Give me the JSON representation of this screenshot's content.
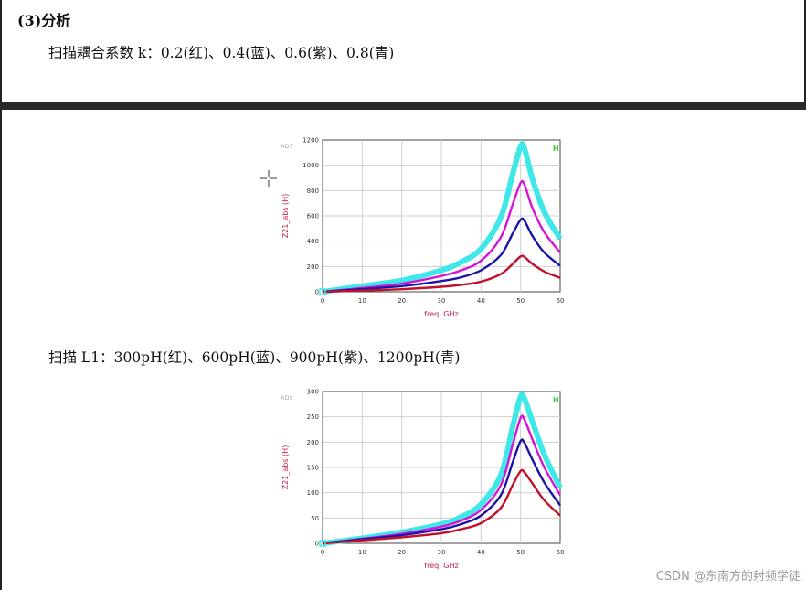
{
  "heading": "(3)分析",
  "sweep_k": "扫描耦合系数 k：0.2(红)、0.4(蓝)、0.6(紫)、0.8(青)",
  "sweep_l1": "扫描 L1：300pH(红)、600pH(蓝)、900pH(紫)、1200pH(青)",
  "watermark": "CSDN @东南方的射频学徒",
  "colors": {
    "red": "#c0102a",
    "blue": "#1c14a8",
    "purple": "#d414d4",
    "cyan": "#3ee8e8",
    "axis_label": "#c4204a"
  },
  "chart_data": [
    {
      "type": "line",
      "badge": "ADS",
      "marker": "H",
      "xlabel": "freq, GHz",
      "ylabel": "Z21_abs (H)",
      "xlim": [
        0,
        60
      ],
      "ylim": [
        0,
        1200
      ],
      "xticks": [
        "0",
        "10",
        "20",
        "30",
        "40",
        "50",
        "60"
      ],
      "yticks": [
        "0",
        "200",
        "400",
        "600",
        "800",
        "1000",
        "1200"
      ],
      "grid": true,
      "x": [
        0,
        10,
        20,
        30,
        35,
        40,
        45,
        48,
        50,
        51,
        53,
        56,
        60
      ],
      "series": [
        {
          "color": "red",
          "values": [
            0,
            10,
            20,
            40,
            55,
            80,
            140,
            220,
            280,
            275,
            220,
            160,
            110
          ]
        },
        {
          "color": "blue",
          "values": [
            0,
            22,
            45,
            85,
            115,
            170,
            290,
            460,
            570,
            560,
            440,
            310,
            205
          ]
        },
        {
          "color": "purple",
          "values": [
            0,
            30,
            65,
            125,
            170,
            245,
            430,
            690,
            860,
            845,
            660,
            470,
            310
          ]
        },
        {
          "color": "cyan",
          "values": [
            0,
            45,
            90,
            170,
            235,
            340,
            590,
            930,
            1150,
            1130,
            890,
            630,
            420
          ]
        }
      ]
    },
    {
      "type": "line",
      "badge": "ADS",
      "marker": "H",
      "xlabel": "freq, GHz",
      "ylabel": "Z21_abs (H)",
      "xlim": [
        0,
        60
      ],
      "ylim": [
        0,
        300
      ],
      "xticks": [
        "0",
        "10",
        "20",
        "30",
        "40",
        "50",
        "60"
      ],
      "yticks": [
        "0",
        "50",
        "100",
        "150",
        "200",
        "250",
        "300"
      ],
      "grid": true,
      "x": [
        0,
        10,
        20,
        30,
        35,
        40,
        45,
        48,
        50,
        51,
        53,
        56,
        60
      ],
      "series": [
        {
          "color": "red",
          "values": [
            0,
            6,
            12,
            20,
            28,
            40,
            70,
            115,
            143,
            140,
            118,
            85,
            55
          ]
        },
        {
          "color": "blue",
          "values": [
            0,
            8,
            16,
            28,
            38,
            55,
            95,
            160,
            202,
            198,
            165,
            120,
            75
          ]
        },
        {
          "color": "purple",
          "values": [
            0,
            9,
            19,
            33,
            45,
            66,
            115,
            195,
            248,
            244,
            205,
            150,
            95
          ]
        },
        {
          "color": "cyan",
          "values": [
            0,
            10,
            22,
            38,
            52,
            77,
            135,
            230,
            290,
            285,
            240,
            175,
            110
          ]
        }
      ]
    }
  ]
}
